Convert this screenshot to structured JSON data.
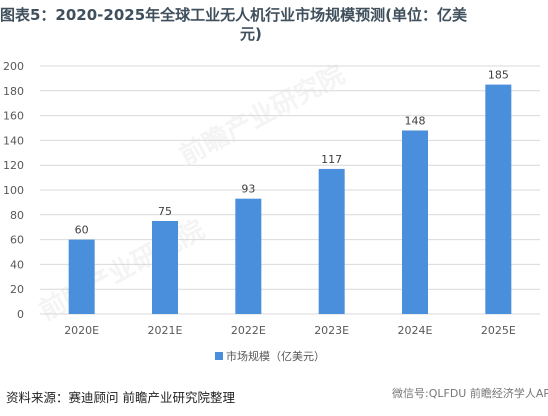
{
  "title": {
    "line1": "图表5：2020-2025年全球工业无人机行业市场规模预测(单位：亿美",
    "line2": "元)"
  },
  "source": "资料来源：赛迪顾问 前瞻产业研究院整理",
  "wechat": "微信号:QLFDU 前瞻经济学人APP",
  "watermark": "前瞻产业研究院",
  "colors": {
    "bar": "#4A8FDB",
    "grid": "#d9d9d9",
    "axis_text": "#595959"
  },
  "chart_data": {
    "type": "bar",
    "title": "图表5：2020-2025年全球工业无人机行业市场规模预测(单位：亿美元)",
    "categories": [
      "2020E",
      "2021E",
      "2022E",
      "2023E",
      "2024E",
      "2025E"
    ],
    "series": [
      {
        "name": "市场规模（亿美元）",
        "values": [
          60,
          75,
          93,
          117,
          148,
          185
        ]
      }
    ],
    "yticks": [
      0,
      20,
      40,
      60,
      80,
      100,
      120,
      140,
      160,
      180,
      200
    ],
    "ylim": [
      0,
      200
    ],
    "grid": true,
    "legend": "bottom",
    "xlabel": "",
    "ylabel": ""
  }
}
